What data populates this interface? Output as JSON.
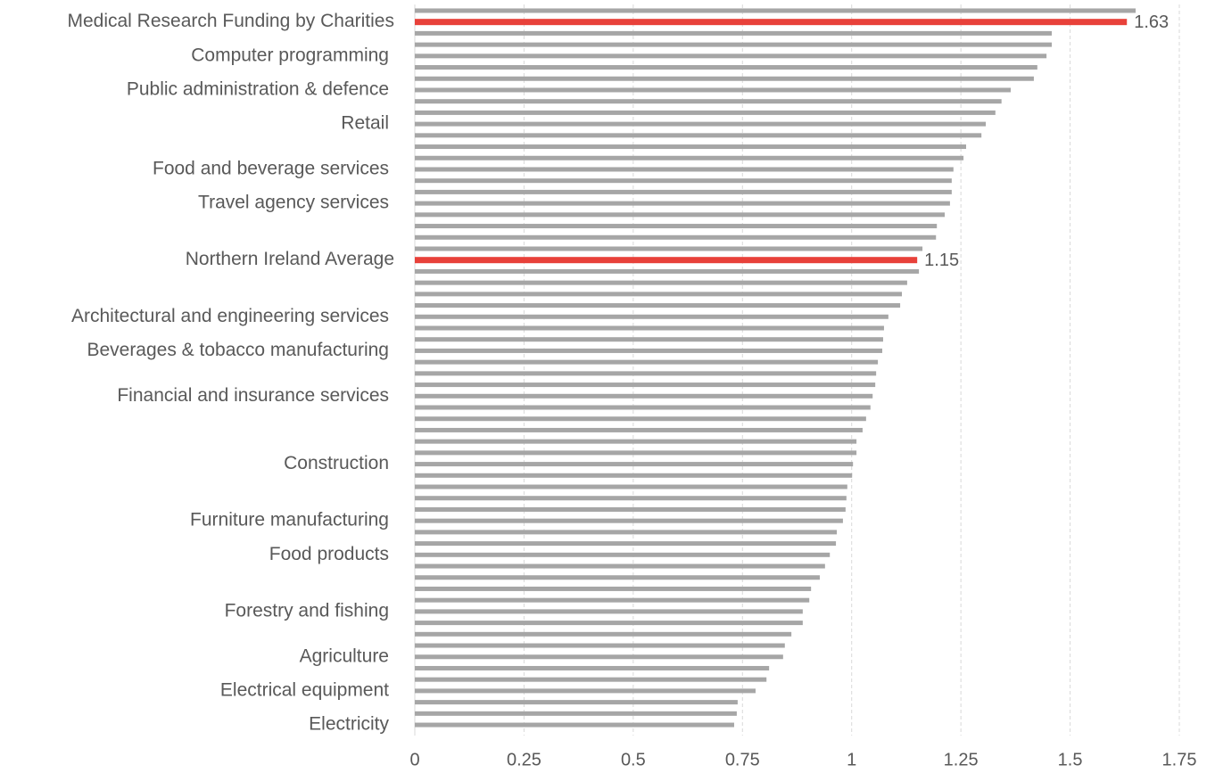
{
  "chart_data": {
    "type": "barh",
    "categories": [
      null,
      "Medical Research Funding by Charities",
      null,
      null,
      "Computer programming",
      null,
      null,
      "Public administration & defence",
      null,
      null,
      "Retail",
      null,
      null,
      null,
      "Food and beverage services",
      null,
      null,
      "Travel agency services",
      null,
      null,
      null,
      null,
      "Northern Ireland Average",
      null,
      null,
      null,
      null,
      "Architectural and engineering services",
      null,
      null,
      "Beverages & tobacco manufacturing",
      null,
      null,
      null,
      "Financial and insurance services",
      null,
      null,
      null,
      null,
      null,
      "Construction",
      null,
      null,
      null,
      null,
      "Furniture manufacturing",
      null,
      null,
      "Food products",
      null,
      null,
      null,
      null,
      "Forestry and fishing",
      null,
      null,
      null,
      "Agriculture",
      null,
      null,
      "Electrical equipment",
      null,
      null,
      "Electricity"
    ],
    "values": [
      1.65,
      1.63,
      1.458,
      1.458,
      1.446,
      1.425,
      1.417,
      1.364,
      1.343,
      1.329,
      1.307,
      1.297,
      1.262,
      1.256,
      1.233,
      1.229,
      1.229,
      1.225,
      1.213,
      1.195,
      1.193,
      1.162,
      1.15,
      1.154,
      1.127,
      1.115,
      1.111,
      1.084,
      1.074,
      1.072,
      1.07,
      1.06,
      1.056,
      1.054,
      1.048,
      1.043,
      1.033,
      1.025,
      1.011,
      1.011,
      1.003,
      1.001,
      0.99,
      0.988,
      0.986,
      0.98,
      0.966,
      0.964,
      0.95,
      0.939,
      0.927,
      0.907,
      0.903,
      0.888,
      0.888,
      0.862,
      0.847,
      0.843,
      0.811,
      0.805,
      0.78,
      0.739,
      0.737,
      0.731
    ],
    "colors": [
      "#a6a6a6",
      "#e8413a",
      "#a6a6a6",
      "#a6a6a6",
      "#a6a6a6",
      "#a6a6a6",
      "#a6a6a6",
      "#a6a6a6",
      "#a6a6a6",
      "#a6a6a6",
      "#a6a6a6",
      "#a6a6a6",
      "#a6a6a6",
      "#a6a6a6",
      "#a6a6a6",
      "#a6a6a6",
      "#a6a6a6",
      "#a6a6a6",
      "#a6a6a6",
      "#a6a6a6",
      "#a6a6a6",
      "#a6a6a6",
      "#e8413a",
      "#a6a6a6",
      "#a6a6a6",
      "#a6a6a6",
      "#a6a6a6",
      "#a6a6a6",
      "#a6a6a6",
      "#a6a6a6",
      "#a6a6a6",
      "#a6a6a6",
      "#a6a6a6",
      "#a6a6a6",
      "#a6a6a6",
      "#a6a6a6",
      "#a6a6a6",
      "#a6a6a6",
      "#a6a6a6",
      "#a6a6a6",
      "#a6a6a6",
      "#a6a6a6",
      "#a6a6a6",
      "#a6a6a6",
      "#a6a6a6",
      "#a6a6a6",
      "#a6a6a6",
      "#a6a6a6",
      "#a6a6a6",
      "#a6a6a6",
      "#a6a6a6",
      "#a6a6a6",
      "#a6a6a6",
      "#a6a6a6",
      "#a6a6a6",
      "#a6a6a6",
      "#a6a6a6",
      "#a6a6a6",
      "#a6a6a6",
      "#a6a6a6",
      "#a6a6a6",
      "#a6a6a6",
      "#a6a6a6",
      "#a6a6a6"
    ],
    "xlim": [
      0,
      1.75
    ],
    "xticks": [
      0,
      0.25,
      0.5,
      0.75,
      1,
      1.25,
      1.5,
      1.75
    ],
    "grid": true
  }
}
